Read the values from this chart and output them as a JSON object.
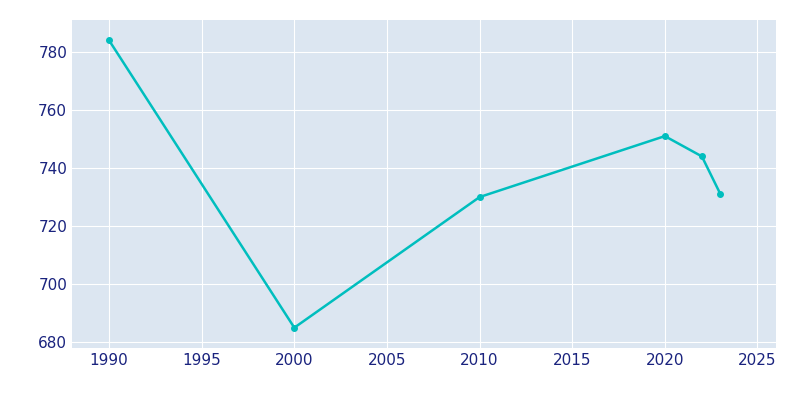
{
  "years": [
    1990,
    2000,
    2010,
    2020,
    2022,
    2023
  ],
  "population": [
    784,
    685,
    730,
    751,
    744,
    731
  ],
  "line_color": "#00BEBE",
  "marker_color": "#00BEBE",
  "plot_background_color": "#dce6f1",
  "figure_background_color": "#ffffff",
  "grid_color": "#ffffff",
  "text_color": "#1a237e",
  "xlim": [
    1988,
    2026
  ],
  "ylim": [
    678,
    791
  ],
  "yticks": [
    680,
    700,
    720,
    740,
    760,
    780
  ],
  "xticks": [
    1990,
    1995,
    2000,
    2005,
    2010,
    2015,
    2020,
    2025
  ],
  "linewidth": 1.8,
  "markersize": 4,
  "tick_fontsize": 11
}
